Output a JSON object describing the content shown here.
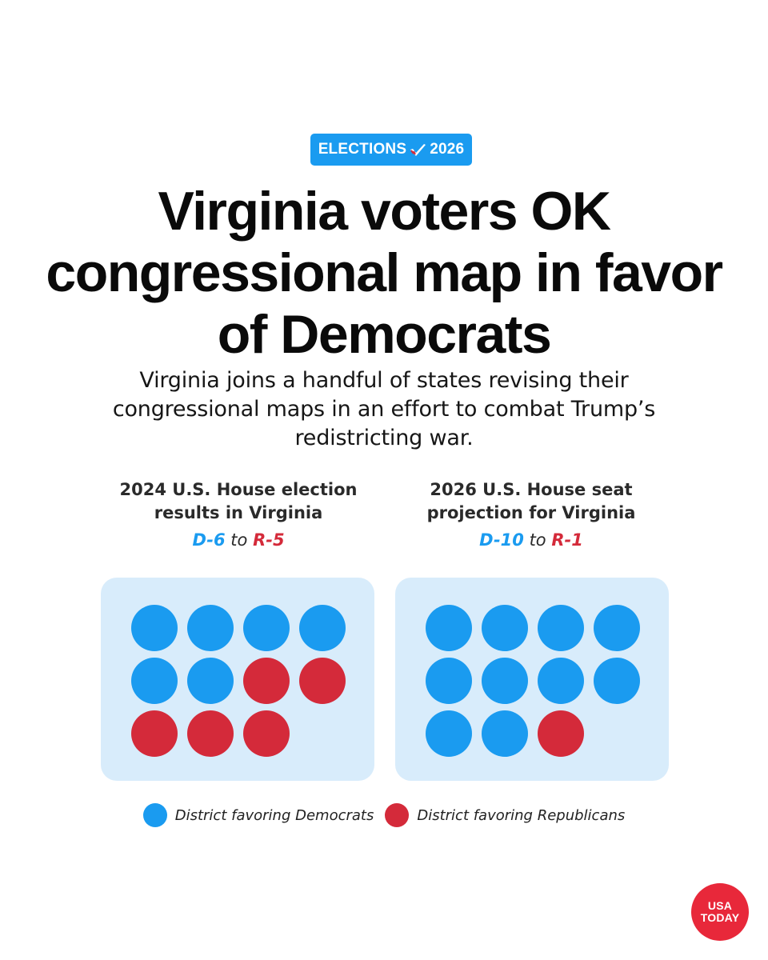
{
  "badge": {
    "left": "ELECTIONS",
    "right": "2026",
    "icon": "check-ballot-icon"
  },
  "headline": "Virginia voters OK congressional map in favor of Democrats",
  "subhead": "Virginia joins a handful of states revising their congressional maps in an effort to combat Trump’s redistricting war.",
  "colors": {
    "democrat": "#1a9bf0",
    "republican": "#d42a3a",
    "panel_bg": "#d8ecfb",
    "logo": "#e8283a"
  },
  "chart_data": [
    {
      "type": "dot-grid",
      "title_line1": "2024 U.S. House election",
      "title_line2": "results in Virginia",
      "d_label": "D-6",
      "to": "to",
      "r_label": "R-5",
      "democrat_seats": 6,
      "republican_seats": 5,
      "seats": [
        "D",
        "D",
        "D",
        "D",
        "D",
        "D",
        "R",
        "R",
        "R",
        "R",
        "R"
      ]
    },
    {
      "type": "dot-grid",
      "title_line1": "2026 U.S. House seat",
      "title_line2": "projection for Virginia",
      "d_label": "D-10",
      "to": "to",
      "r_label": "R-1",
      "democrat_seats": 10,
      "republican_seats": 1,
      "seats": [
        "D",
        "D",
        "D",
        "D",
        "D",
        "D",
        "D",
        "D",
        "D",
        "D",
        "R"
      ]
    }
  ],
  "legend": {
    "democrat": "District favoring Democrats",
    "republican": "District favoring Republicans"
  },
  "logo": {
    "line1": "USA",
    "line2": "TODAY"
  }
}
